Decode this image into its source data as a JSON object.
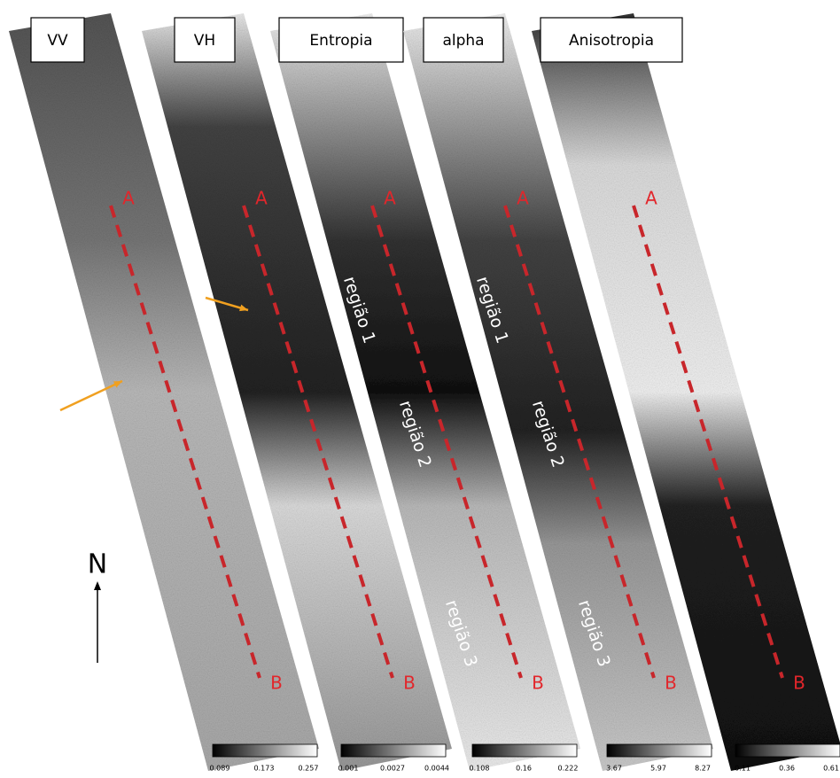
{
  "panels": [
    {
      "title": "VV",
      "start": "A",
      "end": "B",
      "regions": []
    },
    {
      "title": "VH",
      "start": "A",
      "end": "B",
      "regions": []
    },
    {
      "title": "Entropia",
      "start": "A",
      "end": "B",
      "regions": [
        "região 1",
        "região 2",
        "região 3"
      ]
    },
    {
      "title": "alpha",
      "start": "A",
      "end": "B",
      "regions": [
        "região 1",
        "região 2",
        "região 3"
      ]
    },
    {
      "title": "Anisotropia",
      "start": "A",
      "end": "B",
      "regions": []
    }
  ],
  "north": "N",
  "colorbars": [
    {
      "ticks": [
        "0.089",
        "0.173",
        "0.257"
      ]
    },
    {
      "ticks": [
        "0.001",
        "0.0027",
        "0.0044"
      ]
    },
    {
      "ticks": [
        "0.108",
        "0.16",
        "0.222"
      ]
    },
    {
      "ticks": [
        "3.67",
        "5.97",
        "8.27"
      ]
    },
    {
      "ticks": [
        "0.11",
        "0.36",
        "0.61"
      ]
    }
  ]
}
